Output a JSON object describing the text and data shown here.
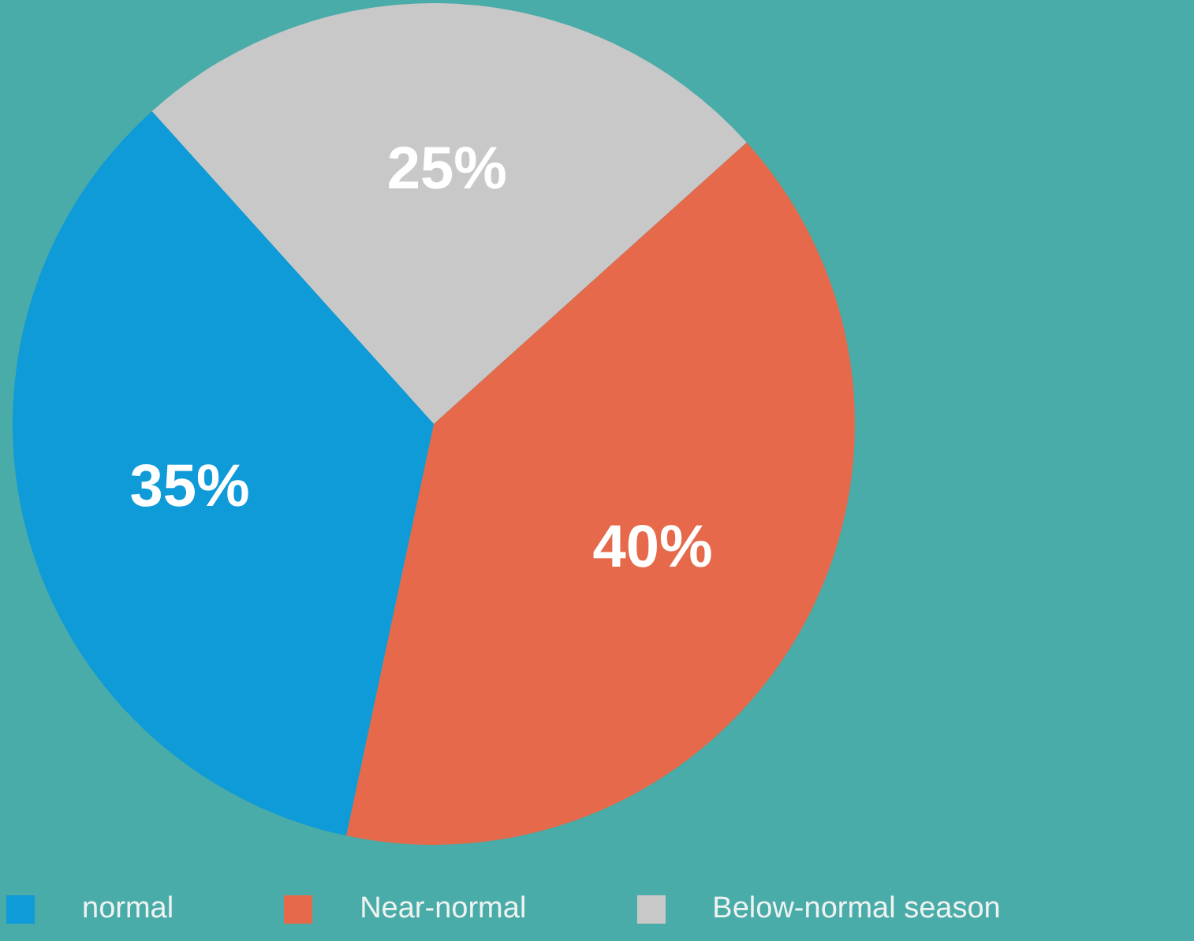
{
  "chart_data": {
    "type": "pie",
    "categories": [
      "normal",
      "Near-normal",
      "Below-normal season"
    ],
    "values": [
      35,
      40,
      25
    ],
    "colors": [
      "#0f9ad8",
      "#e5694a",
      "#c8c8c8"
    ],
    "value_labels": [
      "35%",
      "40%",
      "25%"
    ],
    "legend": "bottom"
  }
}
